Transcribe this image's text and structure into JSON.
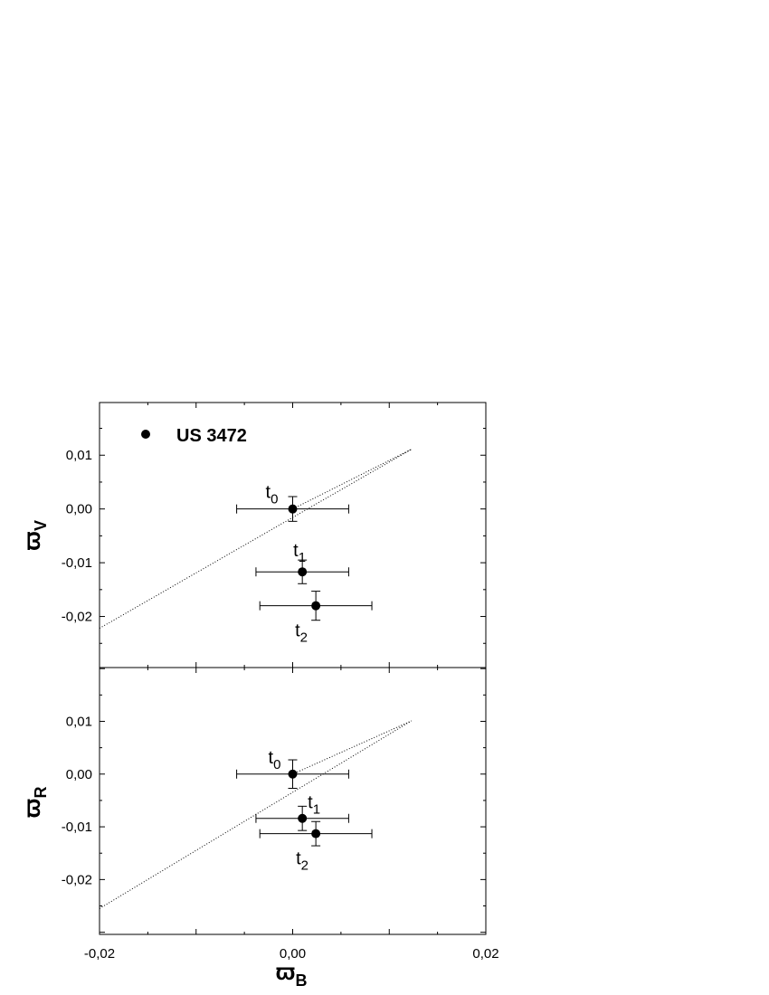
{
  "chart_data": [
    {
      "type": "scatter",
      "panel": "top",
      "xlabel": "ϖ",
      "xlabel_sub": "B",
      "ylabel": "ϖ",
      "ylabel_sub": "V",
      "xlim": [
        -0.02,
        0.02
      ],
      "ylim": [
        -0.0295,
        0.0198
      ],
      "x_ticks": [
        -0.02,
        0.0,
        0.02
      ],
      "y_ticks": [
        -0.02,
        -0.01,
        0.0,
        0.01
      ],
      "y_tick_labels": [
        "-0,02",
        "-0,01",
        "0,00",
        "0,01"
      ],
      "legend": {
        "label": "US 3472",
        "position": "top-left"
      },
      "series": [
        {
          "name": "US 3472",
          "points": [
            {
              "label": "t",
              "sub": "0",
              "x": 0.0,
              "y": 0.0,
              "xerr": 0.0058,
              "yerr": 0.0023
            },
            {
              "label": "t",
              "sub": "1",
              "x": 0.001,
              "y": -0.0117,
              "xerr": 0.0048,
              "yerr": 0.0022
            },
            {
              "label": "t",
              "sub": "2",
              "x": 0.0024,
              "y": -0.018,
              "xerr": 0.0058,
              "yerr": 0.0027
            }
          ]
        }
      ],
      "curve": {
        "style": "dotted",
        "x": [
          -0.02,
          0.0123,
          0.0123,
          -0.0
        ],
        "y": [
          -0.0222,
          0.0111,
          0.0111,
          -0.0
        ]
      },
      "grid": false
    },
    {
      "type": "scatter",
      "panel": "bottom",
      "xlabel": "ϖ",
      "xlabel_sub": "B",
      "ylabel": "ϖ",
      "ylabel_sub": "R",
      "xlim": [
        -0.02,
        0.02
      ],
      "ylim": [
        -0.0304,
        0.0202
      ],
      "x_ticks": [
        -0.02,
        0.0,
        0.02
      ],
      "x_tick_labels": [
        "-0,02",
        "0,00",
        "0,02"
      ],
      "y_ticks": [
        -0.02,
        -0.01,
        0.0,
        0.01
      ],
      "y_tick_labels": [
        "-0,02",
        "-0,01",
        "0,00",
        "0,01"
      ],
      "series": [
        {
          "name": "US 3472",
          "points": [
            {
              "label": "t",
              "sub": "0",
              "x": 0.0,
              "y": 0.0,
              "xerr": 0.0058,
              "yerr": 0.0027
            },
            {
              "label": "t",
              "sub": "1",
              "x": 0.001,
              "y": -0.0084,
              "xerr": 0.0048,
              "yerr": 0.0023
            },
            {
              "label": "t",
              "sub": "2",
              "x": 0.0024,
              "y": -0.0113,
              "xerr": 0.0058,
              "yerr": 0.0023
            }
          ]
        }
      ],
      "curve": {
        "style": "dotted",
        "x": [
          -0.02,
          0.0123,
          0.0123,
          -0.0
        ],
        "y": [
          -0.0255,
          0.0101,
          0.0101,
          -0.0
        ]
      },
      "grid": false
    }
  ]
}
